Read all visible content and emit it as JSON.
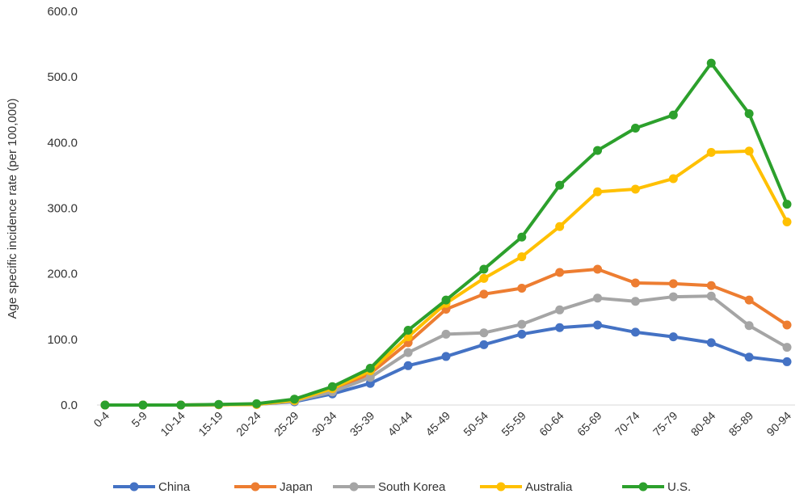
{
  "chart_data": {
    "type": "line",
    "ylabel": "Age specific incidence rate (per 100,000)",
    "ylim": [
      0,
      600
    ],
    "yticks": [
      "0.0",
      "100.0",
      "200.0",
      "300.0",
      "400.0",
      "500.0",
      "600.0"
    ],
    "grid": false,
    "legend_position": "bottom",
    "categories": [
      "0-4",
      "5-9",
      "10-14",
      "15-19",
      "20-24",
      "25-29",
      "30-34",
      "35-39",
      "40-44",
      "45-49",
      "50-54",
      "55-59",
      "60-64",
      "65-69",
      "70-74",
      "75-79",
      "80-84",
      "85-89",
      "90-94"
    ],
    "series": [
      {
        "name": "China",
        "color": "#4472C4",
        "values": [
          0,
          0,
          0,
          0.5,
          1,
          5,
          17,
          33,
          60,
          74,
          92,
          108,
          118,
          122,
          111,
          104,
          95,
          73,
          66
        ]
      },
      {
        "name": "Japan",
        "color": "#ED7D31",
        "values": [
          0,
          0,
          0,
          0.5,
          1,
          6,
          22,
          48,
          95,
          146,
          169,
          178,
          202,
          207,
          186,
          185,
          182,
          160,
          122
        ]
      },
      {
        "name": "South Korea",
        "color": "#A5A5A5",
        "values": [
          0,
          0,
          0,
          0.5,
          1,
          6,
          20,
          42,
          80,
          108,
          110,
          123,
          145,
          163,
          158,
          165,
          166,
          121,
          88
        ]
      },
      {
        "name": "Australia",
        "color": "#FFC000",
        "values": [
          0,
          0,
          0,
          0.5,
          1,
          7,
          25,
          52,
          104,
          155,
          193,
          226,
          272,
          325,
          329,
          345,
          385,
          387,
          279
        ]
      },
      {
        "name": "U.S.",
        "color": "#2CA02C",
        "values": [
          0,
          0,
          0,
          1,
          2,
          9,
          28,
          56,
          114,
          160,
          207,
          256,
          335,
          388,
          422,
          442,
          521,
          444,
          306
        ]
      }
    ]
  }
}
